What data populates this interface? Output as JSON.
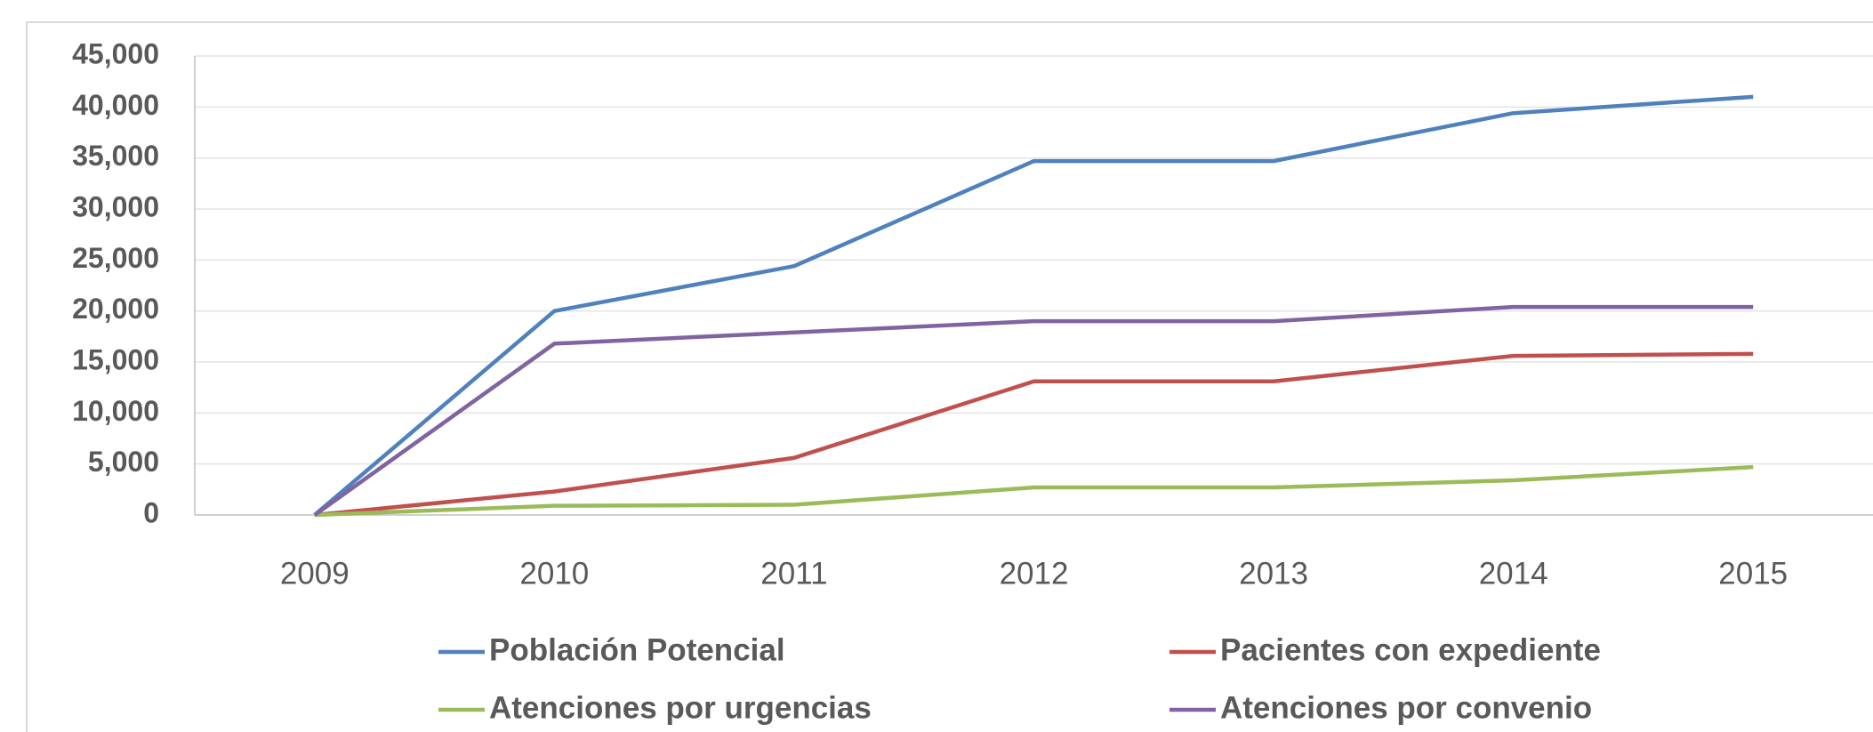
{
  "chart_data": {
    "type": "line",
    "categories": [
      "2009",
      "2010",
      "2011",
      "2012",
      "2013",
      "2014",
      "2015"
    ],
    "series": [
      {
        "name": "Población Potencial",
        "color": "#4f81bd",
        "values": [
          0,
          20000,
          24400,
          34700,
          34700,
          39400,
          41000
        ]
      },
      {
        "name": "Pacientes con expediente",
        "color": "#c0504d",
        "values": [
          0,
          2300,
          5600,
          13100,
          13100,
          15600,
          15800
        ]
      },
      {
        "name": "Atenciones por urgencias",
        "color": "#9bbb59",
        "values": [
          0,
          900,
          1000,
          2700,
          2700,
          3400,
          4700
        ]
      },
      {
        "name": "Atenciones por convenio",
        "color": "#8064a2",
        "values": [
          0,
          16800,
          17900,
          19000,
          19000,
          20400,
          20400
        ]
      }
    ],
    "ylim": [
      0,
      45000
    ],
    "yticks": [
      0,
      {
        "value": 5000,
        "label": "5,000"
      },
      {
        "value": 10000,
        "label": "10,000"
      },
      {
        "value": 15000,
        "label": "15,000"
      },
      {
        "value": 20000,
        "label": "20,000"
      },
      {
        "value": 25000,
        "label": "25,000"
      },
      {
        "value": 30000,
        "label": "30,000"
      },
      {
        "value": 35000,
        "label": "35,000"
      },
      {
        "value": 40000,
        "label": "40,000"
      },
      {
        "value": 45000,
        "label": "45,000"
      }
    ],
    "grid": true,
    "legend": "bottom"
  }
}
